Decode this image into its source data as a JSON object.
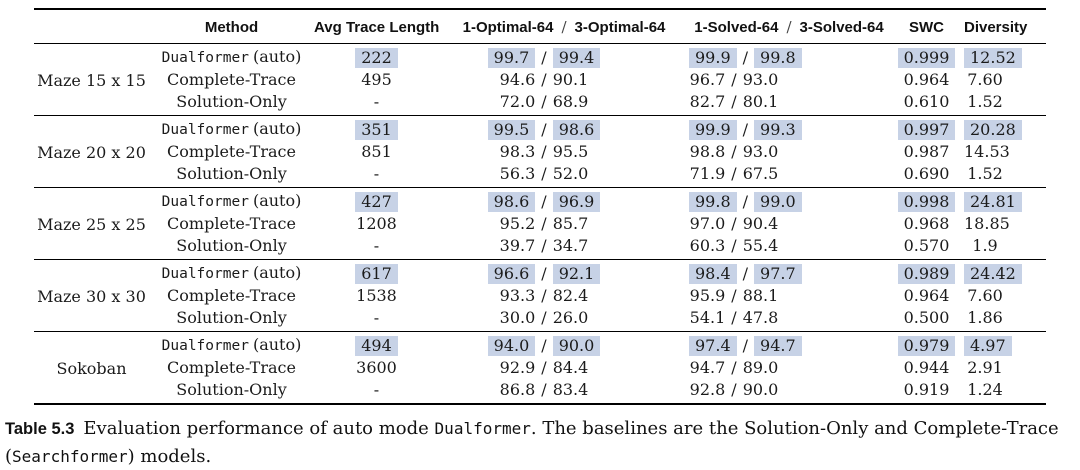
{
  "sep": "/",
  "colors": {
    "highlight": "#c7d2e6",
    "rule": "#000000",
    "text": "#1b1b1b"
  },
  "header": {
    "method": "Method",
    "avg_trace": "Avg Trace Length",
    "optimal_1": "1-Optimal-64",
    "optimal_3": "3-Optimal-64",
    "solved_1": "1-Solved-64",
    "solved_3": "3-Solved-64",
    "swc": "SWC",
    "diversity": "Diversity"
  },
  "groups": [
    {
      "label": "Maze 15 x 15",
      "rows": [
        {
          "method_mono": "Dualformer",
          "method_plain": "(auto)",
          "highlighted": true,
          "avg_trace": "222",
          "optimal_1": "99.7",
          "optimal_3": "99.4",
          "solved_1": "99.9",
          "solved_3": "99.8",
          "swc": "0.999",
          "diversity": "12.52"
        },
        {
          "method_plain": "Complete-Trace",
          "highlighted": false,
          "avg_trace": "495",
          "optimal_1": "94.6",
          "optimal_3": "90.1",
          "solved_1": "96.7",
          "solved_3": "93.0",
          "swc": "0.964",
          "diversity": "7.60"
        },
        {
          "method_plain": "Solution-Only",
          "highlighted": false,
          "avg_trace": "-",
          "optimal_1": "72.0",
          "optimal_3": "68.9",
          "solved_1": "82.7",
          "solved_3": "80.1",
          "swc": "0.610",
          "diversity": "1.52"
        }
      ]
    },
    {
      "label": "Maze 20 x 20",
      "rows": [
        {
          "method_mono": "Dualformer",
          "method_plain": "(auto)",
          "highlighted": true,
          "avg_trace": "351",
          "optimal_1": "99.5",
          "optimal_3": "98.6",
          "solved_1": "99.9",
          "solved_3": "99.3",
          "swc": "0.997",
          "diversity": "20.28"
        },
        {
          "method_plain": "Complete-Trace",
          "highlighted": false,
          "avg_trace": "851",
          "optimal_1": "98.3",
          "optimal_3": "95.5",
          "solved_1": "98.8",
          "solved_3": "93.0",
          "swc": "0.987",
          "diversity": "14.53"
        },
        {
          "method_plain": "Solution-Only",
          "highlighted": false,
          "avg_trace": "-",
          "optimal_1": "56.3",
          "optimal_3": "52.0",
          "solved_1": "71.9",
          "solved_3": "67.5",
          "swc": "0.690",
          "diversity": "1.52"
        }
      ]
    },
    {
      "label": "Maze 25 x 25",
      "rows": [
        {
          "method_mono": "Dualformer",
          "method_plain": "(auto)",
          "highlighted": true,
          "avg_trace": "427",
          "optimal_1": "98.6",
          "optimal_3": "96.9",
          "solved_1": "99.8",
          "solved_3": "99.0",
          "swc": "0.998",
          "diversity": "24.81"
        },
        {
          "method_plain": "Complete-Trace",
          "highlighted": false,
          "avg_trace": "1208",
          "optimal_1": "95.2",
          "optimal_3": "85.7",
          "solved_1": "97.0",
          "solved_3": "90.4",
          "swc": "0.968",
          "diversity": "18.85"
        },
        {
          "method_plain": "Solution-Only",
          "highlighted": false,
          "avg_trace": "-",
          "optimal_1": "39.7",
          "optimal_3": "34.7",
          "solved_1": "60.3",
          "solved_3": "55.4",
          "swc": "0.570",
          "diversity": "1.9"
        }
      ]
    },
    {
      "label": "Maze 30 x 30",
      "rows": [
        {
          "method_mono": "Dualformer",
          "method_plain": "(auto)",
          "highlighted": true,
          "avg_trace": "617",
          "optimal_1": "96.6",
          "optimal_3": "92.1",
          "solved_1": "98.4",
          "solved_3": "97.7",
          "swc": "0.989",
          "diversity": "24.42"
        },
        {
          "method_plain": "Complete-Trace",
          "highlighted": false,
          "avg_trace": "1538",
          "optimal_1": "93.3",
          "optimal_3": "82.4",
          "solved_1": "95.9",
          "solved_3": "88.1",
          "swc": "0.964",
          "diversity": "7.60"
        },
        {
          "method_plain": "Solution-Only",
          "highlighted": false,
          "avg_trace": "-",
          "optimal_1": "30.0",
          "optimal_3": "26.0",
          "solved_1": "54.1",
          "solved_3": "47.8",
          "swc": "0.500",
          "diversity": "1.86"
        }
      ]
    },
    {
      "label": "Sokoban",
      "rows": [
        {
          "method_mono": "Dualformer",
          "method_plain": "(auto)",
          "highlighted": true,
          "avg_trace": "494",
          "optimal_1": "94.0",
          "optimal_3": "90.0",
          "solved_1": "97.4",
          "solved_3": "94.7",
          "swc": "0.979",
          "diversity": "4.97"
        },
        {
          "method_plain": "Complete-Trace",
          "highlighted": false,
          "avg_trace": "3600",
          "optimal_1": "92.9",
          "optimal_3": "84.4",
          "solved_1": "94.7",
          "solved_3": "89.0",
          "swc": "0.944",
          "diversity": "2.91"
        },
        {
          "method_plain": "Solution-Only",
          "highlighted": false,
          "avg_trace": "-",
          "optimal_1": "86.8",
          "optimal_3": "83.4",
          "solved_1": "92.8",
          "solved_3": "90.0",
          "swc": "0.919",
          "diversity": "1.24"
        }
      ]
    }
  ],
  "caption": {
    "label": "Table 5.3",
    "part1": "Evaluation performance of auto mode ",
    "model1": "Dualformer",
    "part2": ". The baselines are the Solution-Only and Complete-Trace (",
    "model2": "Searchformer",
    "part3": ") models."
  }
}
